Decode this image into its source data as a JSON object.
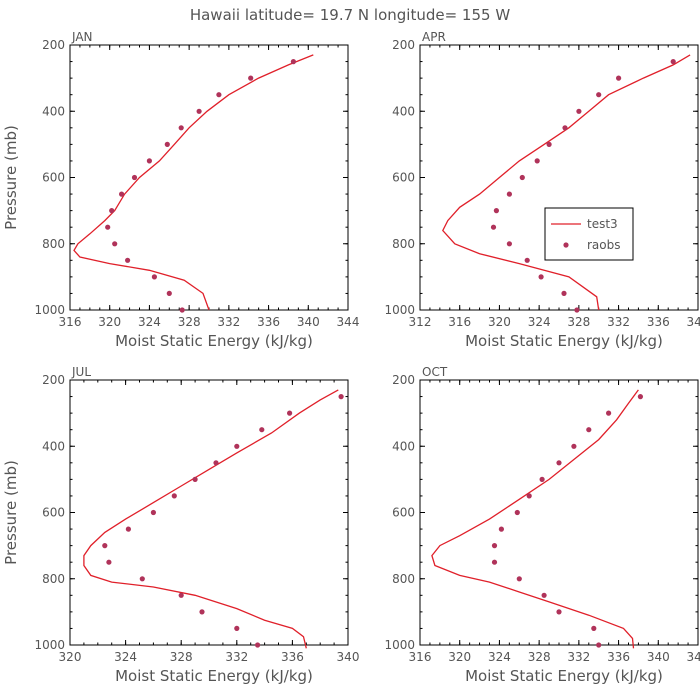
{
  "title": "Hawaii  latitude= 19.7 N longitude= 155 W",
  "colors": {
    "model_line": "#e0202a",
    "obs_marker": "#b0335a",
    "axis": "#000000",
    "text": "#555555"
  },
  "chart_data": [
    {
      "type": "line",
      "panel": "JAN",
      "xlabel": "Moist Static Energy (kJ/kg)",
      "ylabel": "Pressure (mb)",
      "xlim": [
        316,
        344
      ],
      "ylim": [
        1000,
        200
      ],
      "xticks": [
        316,
        320,
        324,
        328,
        332,
        336,
        340,
        344
      ],
      "yticks": [
        200,
        400,
        600,
        800,
        1000
      ],
      "legend": null,
      "series": [
        {
          "name": "test3",
          "kind": "line",
          "points": [
            [
              330.0,
              1000
            ],
            [
              329.4,
              950
            ],
            [
              327.5,
              910
            ],
            [
              324.0,
              880
            ],
            [
              320.0,
              860
            ],
            [
              317.0,
              840
            ],
            [
              316.4,
              820
            ],
            [
              316.8,
              800
            ],
            [
              318.0,
              770
            ],
            [
              319.5,
              730
            ],
            [
              320.5,
              700
            ],
            [
              321.5,
              650
            ],
            [
              323.0,
              600
            ],
            [
              325.0,
              550
            ],
            [
              326.5,
              500
            ],
            [
              328.0,
              450
            ],
            [
              329.8,
              400
            ],
            [
              332.0,
              350
            ],
            [
              335.0,
              300
            ],
            [
              338.0,
              260
            ],
            [
              340.5,
              230
            ]
          ]
        },
        {
          "name": "raobs",
          "kind": "scatter",
          "points": [
            [
              327.3,
              1000
            ],
            [
              326.0,
              950
            ],
            [
              324.5,
              900
            ],
            [
              321.8,
              850
            ],
            [
              320.5,
              800
            ],
            [
              319.8,
              750
            ],
            [
              320.2,
              700
            ],
            [
              321.2,
              650
            ],
            [
              322.5,
              600
            ],
            [
              324.0,
              550
            ],
            [
              325.8,
              500
            ],
            [
              327.2,
              450
            ],
            [
              329.0,
              400
            ],
            [
              331.0,
              350
            ],
            [
              334.2,
              300
            ],
            [
              338.5,
              250
            ]
          ]
        }
      ]
    },
    {
      "type": "line",
      "panel": "APR",
      "xlabel": "Moist Static Energy (kJ/kg)",
      "ylabel": "",
      "xlim": [
        312,
        340
      ],
      "ylim": [
        1000,
        200
      ],
      "xticks": [
        312,
        316,
        320,
        324,
        328,
        332,
        336,
        340
      ],
      "yticks": [
        200,
        400,
        600,
        800,
        1000
      ],
      "legend": {
        "position": "right",
        "entries": [
          "test3",
          "raobs"
        ]
      },
      "series": [
        {
          "name": "test3",
          "kind": "line",
          "points": [
            [
              330.0,
              1000
            ],
            [
              329.8,
              960
            ],
            [
              327.0,
              900
            ],
            [
              322.0,
              860
            ],
            [
              318.0,
              830
            ],
            [
              315.5,
              800
            ],
            [
              314.3,
              760
            ],
            [
              314.8,
              730
            ],
            [
              316.0,
              690
            ],
            [
              318.0,
              650
            ],
            [
              320.0,
              600
            ],
            [
              322.0,
              550
            ],
            [
              324.5,
              500
            ],
            [
              327.0,
              450
            ],
            [
              329.0,
              400
            ],
            [
              331.0,
              350
            ],
            [
              334.5,
              300
            ],
            [
              337.5,
              260
            ],
            [
              339.2,
              230
            ]
          ]
        },
        {
          "name": "raobs",
          "kind": "scatter",
          "points": [
            [
              327.8,
              1000
            ],
            [
              326.5,
              950
            ],
            [
              324.2,
              900
            ],
            [
              322.8,
              850
            ],
            [
              321.0,
              800
            ],
            [
              319.4,
              750
            ],
            [
              319.7,
              700
            ],
            [
              321.0,
              650
            ],
            [
              322.3,
              600
            ],
            [
              323.8,
              550
            ],
            [
              325.0,
              500
            ],
            [
              326.6,
              450
            ],
            [
              328.0,
              400
            ],
            [
              330.0,
              350
            ],
            [
              332.0,
              300
            ],
            [
              337.5,
              250
            ]
          ]
        }
      ]
    },
    {
      "type": "line",
      "panel": "JUL",
      "xlabel": "Moist Static Energy (kJ/kg)",
      "ylabel": "Pressure (mb)",
      "xlim": [
        320,
        340
      ],
      "ylim": [
        1000,
        200
      ],
      "xticks": [
        320,
        324,
        328,
        332,
        336,
        340
      ],
      "yticks": [
        200,
        400,
        600,
        800,
        1000
      ],
      "legend": null,
      "series": [
        {
          "name": "test3",
          "kind": "line",
          "points": [
            [
              337.0,
              1010
            ],
            [
              336.8,
              975
            ],
            [
              336.0,
              950
            ],
            [
              334.0,
              925
            ],
            [
              332.0,
              890
            ],
            [
              329.0,
              850
            ],
            [
              326.0,
              825
            ],
            [
              323.0,
              810
            ],
            [
              321.5,
              790
            ],
            [
              321.0,
              760
            ],
            [
              321.0,
              730
            ],
            [
              321.5,
              700
            ],
            [
              322.5,
              660
            ],
            [
              324.0,
              620
            ],
            [
              326.0,
              570
            ],
            [
              328.0,
              520
            ],
            [
              330.0,
              470
            ],
            [
              332.0,
              420
            ],
            [
              334.5,
              360
            ],
            [
              336.5,
              300
            ],
            [
              338.0,
              260
            ],
            [
              339.3,
              230
            ]
          ]
        },
        {
          "name": "raobs",
          "kind": "scatter",
          "points": [
            [
              333.5,
              1000
            ],
            [
              332.0,
              950
            ],
            [
              329.5,
              900
            ],
            [
              328.0,
              850
            ],
            [
              325.2,
              800
            ],
            [
              322.8,
              750
            ],
            [
              322.5,
              700
            ],
            [
              324.2,
              650
            ],
            [
              326.0,
              600
            ],
            [
              327.5,
              550
            ],
            [
              329.0,
              500
            ],
            [
              330.5,
              450
            ],
            [
              332.0,
              400
            ],
            [
              333.8,
              350
            ],
            [
              335.8,
              300
            ],
            [
              339.5,
              250
            ]
          ]
        }
      ]
    },
    {
      "type": "line",
      "panel": "OCT",
      "xlabel": "Moist Static Energy (kJ/kg)",
      "ylabel": "",
      "xlim": [
        316,
        344
      ],
      "ylim": [
        1000,
        200
      ],
      "xticks": [
        316,
        320,
        324,
        328,
        332,
        336,
        340,
        344
      ],
      "yticks": [
        200,
        400,
        600,
        800,
        1000
      ],
      "legend": null,
      "series": [
        {
          "name": "test3",
          "kind": "line",
          "points": [
            [
              337.5,
              1010
            ],
            [
              337.4,
              980
            ],
            [
              336.5,
              950
            ],
            [
              333.0,
              910
            ],
            [
              329.0,
              870
            ],
            [
              326.0,
              840
            ],
            [
              323.0,
              810
            ],
            [
              320.0,
              790
            ],
            [
              317.5,
              760
            ],
            [
              317.2,
              730
            ],
            [
              318.0,
              700
            ],
            [
              320.0,
              670
            ],
            [
              323.0,
              620
            ],
            [
              326.0,
              560
            ],
            [
              329.0,
              500
            ],
            [
              331.5,
              440
            ],
            [
              334.0,
              380
            ],
            [
              335.8,
              320
            ],
            [
              337.0,
              270
            ],
            [
              338.0,
              230
            ]
          ]
        },
        {
          "name": "raobs",
          "kind": "scatter",
          "points": [
            [
              334.0,
              1000
            ],
            [
              333.5,
              950
            ],
            [
              330.0,
              900
            ],
            [
              328.5,
              850
            ],
            [
              326.0,
              800
            ],
            [
              323.5,
              750
            ],
            [
              323.5,
              700
            ],
            [
              324.2,
              650
            ],
            [
              325.8,
              600
            ],
            [
              327.0,
              550
            ],
            [
              328.3,
              500
            ],
            [
              330.0,
              450
            ],
            [
              331.5,
              400
            ],
            [
              333.0,
              350
            ],
            [
              335.0,
              300
            ],
            [
              338.2,
              250
            ]
          ]
        }
      ]
    }
  ]
}
